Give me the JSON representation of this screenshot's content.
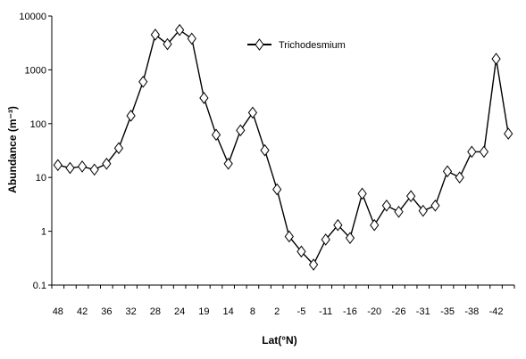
{
  "chart_data": {
    "type": "line",
    "title": "",
    "xlabel": "Lat(°N)",
    "ylabel": "Abundance (m⁻³)",
    "y_scale": "log",
    "ylim": [
      0.1,
      10000
    ],
    "y_ticks": [
      "0.1",
      "1",
      "10",
      "100",
      "1000",
      "10000"
    ],
    "x_tick_labels": [
      "48",
      "42",
      "36",
      "32",
      "28",
      "24",
      "19",
      "14",
      "8",
      "2",
      "-5",
      "-11",
      "-16",
      "-20",
      "-26",
      "-31",
      "-35",
      "-38",
      "-42"
    ],
    "grid": false,
    "legend_position": "top-center",
    "series": [
      {
        "name": "Trichodesmium",
        "color": "#000000",
        "marker": "diamond",
        "values": [
          17,
          15,
          16,
          14,
          18,
          35,
          140,
          600,
          4500,
          3000,
          5500,
          3800,
          300,
          62,
          18,
          75,
          160,
          32,
          6,
          0.8,
          0.42,
          0.24,
          0.7,
          1.3,
          0.75,
          5,
          1.3,
          3,
          2.3,
          4.5,
          2.4,
          3,
          13,
          10,
          30,
          30,
          1600,
          65
        ]
      }
    ]
  }
}
